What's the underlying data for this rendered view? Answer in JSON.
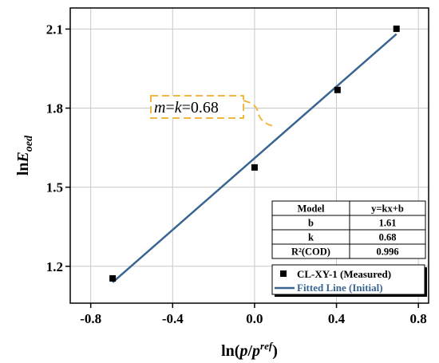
{
  "chart_data": {
    "type": "scatter",
    "title": "",
    "xlabel": {
      "prefix": "ln(",
      "italic": "p",
      "slash": "/",
      "italic2": "p",
      "sup": "ref",
      "suffix": ")"
    },
    "ylabel": {
      "prefix": "ln",
      "italic": "E",
      "sub": "oed"
    },
    "xlim": [
      -0.9,
      0.85
    ],
    "ylim": [
      1.06,
      2.18
    ],
    "xticks": [
      -0.8,
      -0.4,
      0.0,
      0.4,
      0.8
    ],
    "xtick_labels": [
      "-0.8",
      "-0.4",
      "0.0",
      "0.4",
      "0.8"
    ],
    "yticks": [
      1.2,
      1.5,
      1.8,
      2.1
    ],
    "ytick_labels": [
      "1.2",
      "1.5",
      "1.8",
      "2.1"
    ],
    "grid": true,
    "series": [
      {
        "name": "CL-XY-1 (Measured)",
        "kind": "scatter",
        "marker": "square",
        "color": "#000000",
        "x": [
          -0.693,
          0.0,
          0.405,
          0.693
        ],
        "y": [
          1.154,
          1.575,
          1.869,
          2.101
        ]
      },
      {
        "name": "Fitted Line (Initial)",
        "kind": "line",
        "color": "#3a6591",
        "x": [
          -0.693,
          0.693
        ],
        "y": [
          1.139,
          2.081
        ]
      }
    ],
    "annotation": {
      "lhs_italic": "m",
      "eq1": "=",
      "mid_italic": "k",
      "eq2": "=",
      "value": "0.68"
    },
    "stats_table": {
      "rows": [
        [
          "Model",
          "y=kx+b"
        ],
        [
          "b",
          "1.61"
        ],
        [
          "k",
          "0.68"
        ],
        [
          "R²(COD)",
          "0.996"
        ]
      ]
    },
    "legend": {
      "placement": "bottom-right",
      "items": [
        "CL-XY-1 (Measured)",
        "Fitted Line (Initial)"
      ]
    }
  }
}
